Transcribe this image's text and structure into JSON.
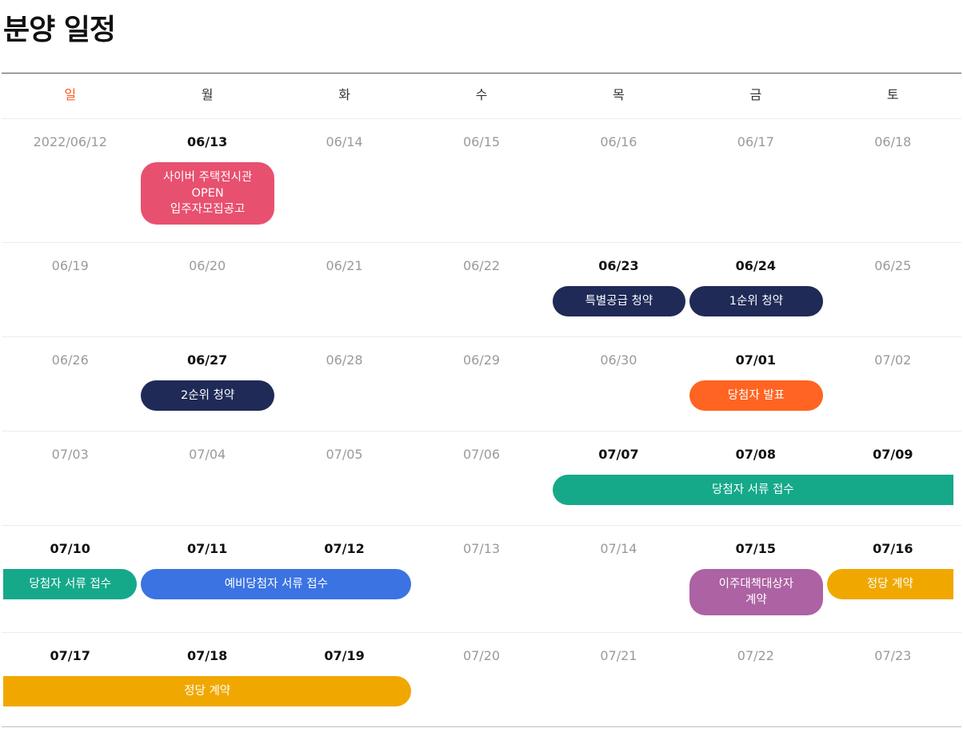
{
  "title": "분양 일정",
  "days": [
    "일",
    "월",
    "화",
    "수",
    "목",
    "금",
    "토"
  ],
  "colors": {
    "pink": "#e8506f",
    "navy": "#1f2a57",
    "orange": "#ff6422",
    "teal": "#15a98a",
    "blue": "#3b73e3",
    "purple": "#ad62a3",
    "yellow": "#f0a800",
    "sunday": "#ff5a1f"
  },
  "weeks": [
    {
      "dates": [
        {
          "label": "2022/06/12",
          "active": false
        },
        {
          "label": "06/13",
          "active": true
        },
        {
          "label": "06/14",
          "active": false
        },
        {
          "label": "06/15",
          "active": false
        },
        {
          "label": "06/16",
          "active": false
        },
        {
          "label": "06/17",
          "active": false
        },
        {
          "label": "06/18",
          "active": false
        }
      ],
      "events": [
        {
          "label": "사이버 주택전시관\nOPEN\n입주자모집공고",
          "start": 1,
          "end": 1,
          "color": "pink",
          "lines": 3
        }
      ]
    },
    {
      "dates": [
        {
          "label": "06/19",
          "active": false
        },
        {
          "label": "06/20",
          "active": false
        },
        {
          "label": "06/21",
          "active": false
        },
        {
          "label": "06/22",
          "active": false
        },
        {
          "label": "06/23",
          "active": true
        },
        {
          "label": "06/24",
          "active": true
        },
        {
          "label": "06/25",
          "active": false
        }
      ],
      "events": [
        {
          "label": "특별공급 청약",
          "start": 4,
          "end": 4,
          "color": "navy",
          "lines": 1
        },
        {
          "label": "1순위 청약",
          "start": 5,
          "end": 5,
          "color": "navy",
          "lines": 1
        }
      ]
    },
    {
      "dates": [
        {
          "label": "06/26",
          "active": false
        },
        {
          "label": "06/27",
          "active": true
        },
        {
          "label": "06/28",
          "active": false
        },
        {
          "label": "06/29",
          "active": false
        },
        {
          "label": "06/30",
          "active": false
        },
        {
          "label": "07/01",
          "active": true
        },
        {
          "label": "07/02",
          "active": false
        }
      ],
      "events": [
        {
          "label": "2순위 청약",
          "start": 1,
          "end": 1,
          "color": "navy",
          "lines": 1
        },
        {
          "label": "당첨자 발표",
          "start": 5,
          "end": 5,
          "color": "orange",
          "lines": 1
        }
      ]
    },
    {
      "dates": [
        {
          "label": "07/03",
          "active": false
        },
        {
          "label": "07/04",
          "active": false
        },
        {
          "label": "07/05",
          "active": false
        },
        {
          "label": "07/06",
          "active": false
        },
        {
          "label": "07/07",
          "active": true
        },
        {
          "label": "07/08",
          "active": true
        },
        {
          "label": "07/09",
          "active": true
        }
      ],
      "events": [
        {
          "label": "당첨자 서류 접수",
          "start": 4,
          "end": 6,
          "color": "teal",
          "lines": 1,
          "contRight": true
        }
      ]
    },
    {
      "dates": [
        {
          "label": "07/10",
          "active": true
        },
        {
          "label": "07/11",
          "active": true
        },
        {
          "label": "07/12",
          "active": true
        },
        {
          "label": "07/13",
          "active": false
        },
        {
          "label": "07/14",
          "active": false
        },
        {
          "label": "07/15",
          "active": true
        },
        {
          "label": "07/16",
          "active": true
        }
      ],
      "events": [
        {
          "label": "당첨자 서류 접수",
          "start": 0,
          "end": 0,
          "color": "teal",
          "lines": 1,
          "contLeft": true
        },
        {
          "label": "예비당첨자 서류 접수",
          "start": 1,
          "end": 2,
          "color": "blue",
          "lines": 1
        },
        {
          "label": "이주대책대상자\n계약",
          "start": 5,
          "end": 5,
          "color": "purple",
          "lines": 2
        },
        {
          "label": "정당 계약",
          "start": 6,
          "end": 6,
          "color": "yellow",
          "lines": 1,
          "contRight": true
        }
      ]
    },
    {
      "dates": [
        {
          "label": "07/17",
          "active": true
        },
        {
          "label": "07/18",
          "active": true
        },
        {
          "label": "07/19",
          "active": true
        },
        {
          "label": "07/20",
          "active": false
        },
        {
          "label": "07/21",
          "active": false
        },
        {
          "label": "07/22",
          "active": false
        },
        {
          "label": "07/23",
          "active": false
        }
      ],
      "events": [
        {
          "label": "정당 계약",
          "start": 0,
          "end": 2,
          "color": "yellow",
          "lines": 1,
          "contLeft": true
        }
      ]
    }
  ]
}
